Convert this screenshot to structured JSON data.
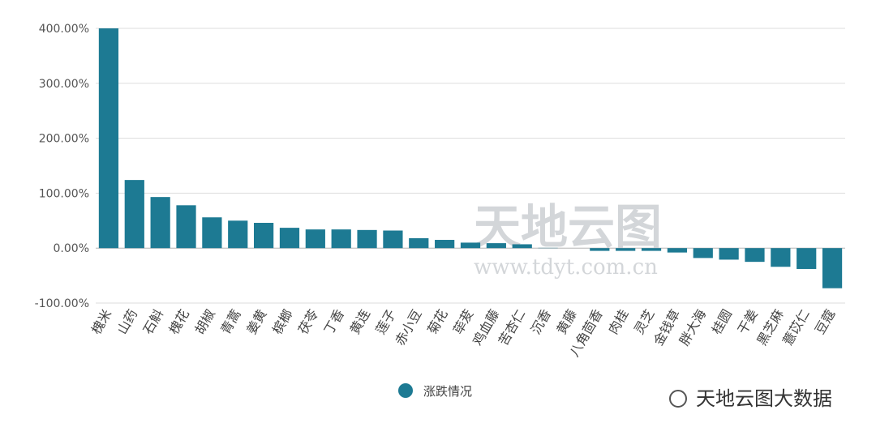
{
  "chart_data": {
    "type": "bar",
    "categories": [
      "槐米",
      "山药",
      "石斛",
      "槐花",
      "胡椒",
      "青蒿",
      "姜黄",
      "槟榔",
      "茯苓",
      "丁香",
      "黄连",
      "莲子",
      "赤小豆",
      "菊花",
      "荜茇",
      "鸡血藤",
      "苦杏仁",
      "沉香",
      "黄藤",
      "八角茴香",
      "肉桂",
      "灵芝",
      "金钱草",
      "胖大海",
      "桂圆",
      "干姜",
      "黑芝麻",
      "薏苡仁",
      "豆蔻"
    ],
    "series": [
      {
        "name": "涨跌情况",
        "color": "#1d7a93",
        "values": [
          400,
          124,
          93,
          78,
          56,
          50,
          46,
          37,
          34,
          34,
          33,
          32,
          18,
          15,
          10,
          9,
          7,
          0.5,
          0,
          -5,
          -5,
          -5,
          -8,
          -18,
          -21,
          -25,
          -34,
          -38,
          -73
        ]
      }
    ],
    "ylim": [
      -100,
      400
    ],
    "yticks": [
      {
        "value": -100,
        "label": "-100.00%"
      },
      {
        "value": 0,
        "label": "0.00%"
      },
      {
        "value": 100,
        "label": "100.00%"
      },
      {
        "value": 200,
        "label": "200.00%"
      },
      {
        "value": 300,
        "label": "300.00%"
      },
      {
        "value": 400,
        "label": "400.00%"
      }
    ],
    "grid": true,
    "watermarks": [
      "天地云图",
      "www.tdyt.com.cn",
      "天地云图大数据"
    ]
  }
}
